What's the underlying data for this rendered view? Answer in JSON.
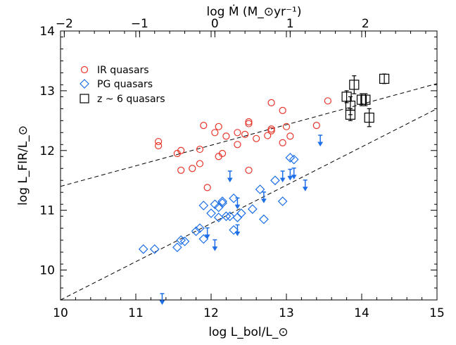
{
  "chart_data": {
    "type": "scatter",
    "title": "",
    "xlabel": "log L_bol/L_⊙",
    "ylabel": "log L_FIR/L_⊙",
    "top_xlabel": "log Ṁ (M_⊙yr⁻¹)",
    "xlim": [
      10,
      15
    ],
    "ylim": [
      9.5,
      14
    ],
    "x_ticks": [
      "10",
      "11",
      "12",
      "13",
      "14",
      "15"
    ],
    "y_ticks": [
      "10",
      "11",
      "12",
      "13",
      "14"
    ],
    "top_x_ticks": [
      "−2",
      "−1",
      "0",
      "1",
      "2"
    ],
    "top_x_tick_bol": [
      10.05,
      11.05,
      12.05,
      13.05,
      14.05
    ],
    "legend_position": "top-left",
    "grid": false,
    "colors": {
      "ir": "#e8352a",
      "pg": "#1c6fe8",
      "z6": "#000000"
    },
    "series": [
      {
        "name": "IR quasars",
        "marker": "circle",
        "points": [
          [
            11.3,
            12.15
          ],
          [
            11.3,
            12.08
          ],
          [
            11.55,
            11.95
          ],
          [
            11.6,
            12.0
          ],
          [
            11.6,
            11.67
          ],
          [
            11.75,
            11.7
          ],
          [
            11.85,
            12.02
          ],
          [
            11.85,
            11.78
          ],
          [
            11.9,
            12.42
          ],
          [
            11.95,
            11.38
          ],
          [
            12.05,
            12.3
          ],
          [
            12.1,
            12.4
          ],
          [
            12.1,
            11.9
          ],
          [
            12.15,
            11.95
          ],
          [
            12.2,
            12.24
          ],
          [
            12.35,
            12.1
          ],
          [
            12.35,
            12.3
          ],
          [
            12.45,
            12.27
          ],
          [
            12.5,
            12.45
          ],
          [
            12.5,
            12.48
          ],
          [
            12.5,
            11.67
          ],
          [
            12.6,
            12.2
          ],
          [
            12.75,
            12.25
          ],
          [
            12.8,
            12.36
          ],
          [
            12.8,
            12.33
          ],
          [
            12.8,
            12.8
          ],
          [
            12.95,
            12.67
          ],
          [
            13.0,
            12.4
          ],
          [
            13.05,
            12.24
          ],
          [
            12.95,
            12.13
          ],
          [
            13.4,
            12.42
          ],
          [
            13.55,
            12.83
          ]
        ]
      },
      {
        "name": "PG quasars",
        "marker": "diamond",
        "points": [
          [
            11.1,
            10.35
          ],
          [
            11.25,
            10.35
          ],
          [
            11.55,
            10.38
          ],
          [
            11.6,
            10.5
          ],
          [
            11.65,
            10.48
          ],
          [
            11.8,
            10.65
          ],
          [
            11.85,
            10.7
          ],
          [
            11.9,
            10.52
          ],
          [
            11.9,
            11.08
          ],
          [
            12.0,
            10.95
          ],
          [
            12.05,
            11.1
          ],
          [
            12.1,
            11.05
          ],
          [
            12.1,
            10.88
          ],
          [
            12.15,
            11.12
          ],
          [
            12.15,
            11.15
          ],
          [
            12.2,
            10.9
          ],
          [
            12.25,
            10.9
          ],
          [
            12.3,
            10.67
          ],
          [
            12.3,
            11.2
          ],
          [
            12.35,
            10.88
          ],
          [
            12.4,
            10.95
          ],
          [
            12.55,
            11.02
          ],
          [
            12.65,
            11.35
          ],
          [
            12.7,
            10.85
          ],
          [
            12.85,
            11.5
          ],
          [
            12.95,
            11.15
          ],
          [
            13.05,
            11.88
          ],
          [
            13.1,
            11.85
          ]
        ]
      },
      {
        "name": "PG upper limits",
        "marker": "arrow",
        "points": [
          [
            11.35,
            9.5
          ],
          [
            11.95,
            10.6
          ],
          [
            12.05,
            10.4
          ],
          [
            12.25,
            11.55
          ],
          [
            12.35,
            10.65
          ],
          [
            12.35,
            11.1
          ],
          [
            12.7,
            11.2
          ],
          [
            12.95,
            11.55
          ],
          [
            13.05,
            11.58
          ],
          [
            13.1,
            11.6
          ],
          [
            13.25,
            11.4
          ],
          [
            13.45,
            12.15
          ]
        ]
      },
      {
        "name": "z ~ 6 quasars",
        "marker": "square",
        "points": [
          [
            13.8,
            12.9,
            0.1
          ],
          [
            13.85,
            12.6,
            0.1
          ],
          [
            13.85,
            12.75,
            0.15
          ],
          [
            13.9,
            13.1,
            0.15
          ],
          [
            14.0,
            12.85,
            0.1
          ],
          [
            14.05,
            12.85,
            0.1
          ],
          [
            14.1,
            12.55,
            0.15
          ],
          [
            14.3,
            13.2,
            0.08
          ]
        ]
      }
    ],
    "lines": [
      {
        "style": "dashed",
        "from": [
          10,
          11.4
        ],
        "to": [
          15,
          13.12
        ]
      },
      {
        "style": "dashed",
        "from": [
          10,
          9.5
        ],
        "to": [
          15,
          12.7
        ]
      }
    ]
  }
}
